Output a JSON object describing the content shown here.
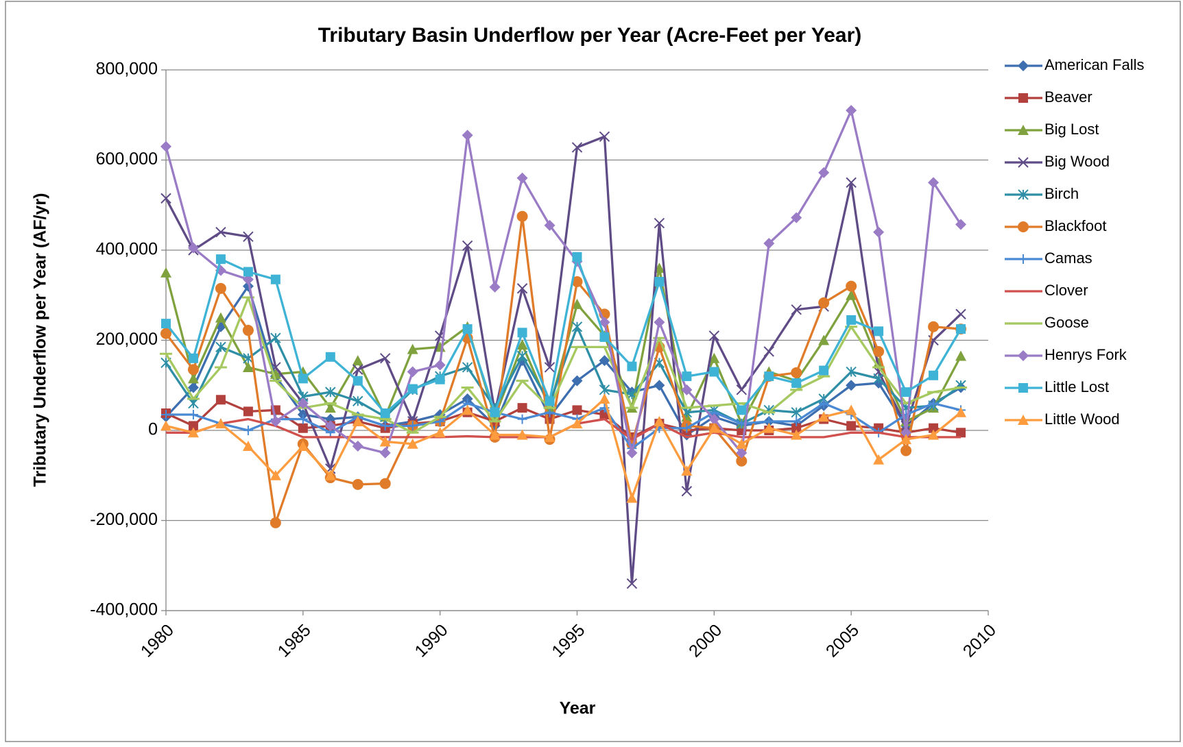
{
  "chart_data": {
    "type": "line",
    "title": "Tributary Basin Underflow per Year (Acre-Feet per Year)",
    "x_label": "Year",
    "y_label": "Tributary Underflow per Year (AF/yr)",
    "x": [
      1980,
      1981,
      1982,
      1983,
      1984,
      1985,
      1986,
      1987,
      1988,
      1989,
      1990,
      1991,
      1992,
      1993,
      1994,
      1995,
      1996,
      1997,
      1998,
      1999,
      2000,
      2001,
      2002,
      2003,
      2004,
      2005,
      2006,
      2007,
      2008,
      2009
    ],
    "xlim": [
      1980,
      2010
    ],
    "xticks": [
      1980,
      1985,
      1990,
      1995,
      2000,
      2005,
      2010
    ],
    "ylim": [
      -400000,
      800000
    ],
    "yticks": [
      {
        "value": -400000,
        "label": "-400,000"
      },
      {
        "value": -200000,
        "label": "-200,000"
      },
      0,
      {
        "value": 200000,
        "label": "200,000"
      },
      {
        "value": 400000,
        "label": "400,000"
      },
      {
        "value": 600000,
        "label": "600,000"
      },
      {
        "value": 800000,
        "label": "800,000"
      }
    ],
    "grid": true,
    "legend": "right",
    "series": [
      {
        "name": "American Falls",
        "color": "#3d6fb0",
        "marker": "diamond",
        "values": [
          30000,
          95000,
          230000,
          320000,
          120000,
          35000,
          25000,
          30000,
          10000,
          20000,
          35000,
          70000,
          10000,
          155000,
          30000,
          110000,
          155000,
          85000,
          100000,
          -10000,
          30000,
          10000,
          20000,
          10000,
          55000,
          100000,
          105000,
          10000,
          60000,
          95000
        ]
      },
      {
        "name": "Beaver",
        "color": "#b2413e",
        "marker": "square",
        "values": [
          38000,
          10000,
          68000,
          42000,
          45000,
          5000,
          10000,
          20000,
          5000,
          15000,
          20000,
          40000,
          20000,
          50000,
          25000,
          45000,
          35000,
          -15000,
          15000,
          0,
          5000,
          0,
          0,
          5000,
          25000,
          10000,
          5000,
          -5000,
          5000,
          -5000
        ]
      },
      {
        "name": "Big Lost",
        "color": "#7fa23f",
        "marker": "triangle",
        "values": [
          350000,
          115000,
          250000,
          140000,
          125000,
          130000,
          50000,
          155000,
          30000,
          180000,
          185000,
          230000,
          30000,
          190000,
          50000,
          280000,
          210000,
          50000,
          360000,
          30000,
          160000,
          15000,
          130000,
          110000,
          200000,
          300000,
          150000,
          20000,
          50000,
          165000
        ]
      },
      {
        "name": "Big Wood",
        "color": "#5f4b86",
        "marker": "x",
        "values": [
          515000,
          400000,
          440000,
          430000,
          140000,
          60000,
          -85000,
          135000,
          160000,
          20000,
          210000,
          410000,
          40000,
          315000,
          140000,
          628000,
          652000,
          -340000,
          460000,
          -135000,
          210000,
          90000,
          175000,
          268000,
          275000,
          550000,
          130000,
          10000,
          200000,
          258000
        ]
      },
      {
        "name": "Birch",
        "color": "#2f8fa6",
        "marker": "asterisk",
        "values": [
          150000,
          60000,
          185000,
          160000,
          205000,
          75000,
          85000,
          65000,
          30000,
          90000,
          120000,
          140000,
          50000,
          165000,
          60000,
          230000,
          90000,
          80000,
          150000,
          40000,
          45000,
          15000,
          45000,
          40000,
          70000,
          130000,
          115000,
          50000,
          55000,
          100000
        ]
      },
      {
        "name": "Blackfoot",
        "color": "#e07b2a",
        "marker": "circle",
        "values": [
          215000,
          135000,
          315000,
          222000,
          -205000,
          -30000,
          -105000,
          -120000,
          -118000,
          10000,
          20000,
          205000,
          -15000,
          475000,
          -20000,
          330000,
          258000,
          -30000,
          185000,
          10000,
          5000,
          -68000,
          120000,
          128000,
          283000,
          320000,
          175000,
          -45000,
          230000,
          225000
        ]
      },
      {
        "name": "Camas",
        "color": "#4a8ad4",
        "marker": "plus",
        "values": [
          35000,
          35000,
          15000,
          0,
          25000,
          25000,
          -5000,
          30000,
          10000,
          10000,
          20000,
          60000,
          40000,
          25000,
          40000,
          25000,
          50000,
          -40000,
          5000,
          5000,
          40000,
          15000,
          20000,
          20000,
          60000,
          35000,
          -5000,
          35000,
          60000,
          45000
        ]
      },
      {
        "name": "Clover",
        "color": "#d0504d",
        "marker": "none",
        "values": [
          -5000,
          -5000,
          15000,
          25000,
          10000,
          -15000,
          -15000,
          -15000,
          -15000,
          -15000,
          -15000,
          -13000,
          -15000,
          -15000,
          -15000,
          15000,
          25000,
          -20000,
          15000,
          -15000,
          -5000,
          -15000,
          -15000,
          -15000,
          -15000,
          -5000,
          -5000,
          -15000,
          -15000,
          -15000
        ]
      },
      {
        "name": "Goose",
        "color": "#a5c85f",
        "marker": "dash",
        "values": [
          170000,
          70000,
          140000,
          295000,
          110000,
          50000,
          60000,
          35000,
          25000,
          -5000,
          30000,
          95000,
          20000,
          110000,
          50000,
          185000,
          185000,
          50000,
          205000,
          50000,
          55000,
          60000,
          40000,
          90000,
          120000,
          230000,
          140000,
          60000,
          85000,
          95000
        ]
      },
      {
        "name": "Henrys Fork",
        "color": "#9a7bc6",
        "marker": "diamond",
        "values": [
          630000,
          405000,
          355000,
          335000,
          20000,
          60000,
          10000,
          -35000,
          -50000,
          130000,
          145000,
          655000,
          318000,
          560000,
          455000,
          375000,
          240000,
          -50000,
          240000,
          90000,
          25000,
          -50000,
          415000,
          472000,
          572000,
          710000,
          440000,
          -5000,
          550000,
          457000
        ]
      },
      {
        "name": "Little Lost",
        "color": "#3fb3d6",
        "marker": "square",
        "values": [
          237000,
          160000,
          380000,
          352000,
          335000,
          115000,
          163000,
          110000,
          38000,
          92000,
          113000,
          225000,
          40000,
          217000,
          65000,
          385000,
          207000,
          142000,
          330000,
          120000,
          130000,
          45000,
          120000,
          105000,
          133000,
          245000,
          220000,
          85000,
          122000,
          225000
        ]
      },
      {
        "name": "Little Wood",
        "color": "#fd9c3f",
        "marker": "triangle",
        "values": [
          10000,
          -5000,
          15000,
          -35000,
          -100000,
          -35000,
          -100000,
          20000,
          -25000,
          -30000,
          -5000,
          45000,
          -10000,
          -10000,
          -15000,
          15000,
          70000,
          -150000,
          20000,
          -90000,
          5000,
          -30000,
          5000,
          -10000,
          30000,
          45000,
          -65000,
          -20000,
          -10000,
          40000
        ]
      }
    ]
  }
}
